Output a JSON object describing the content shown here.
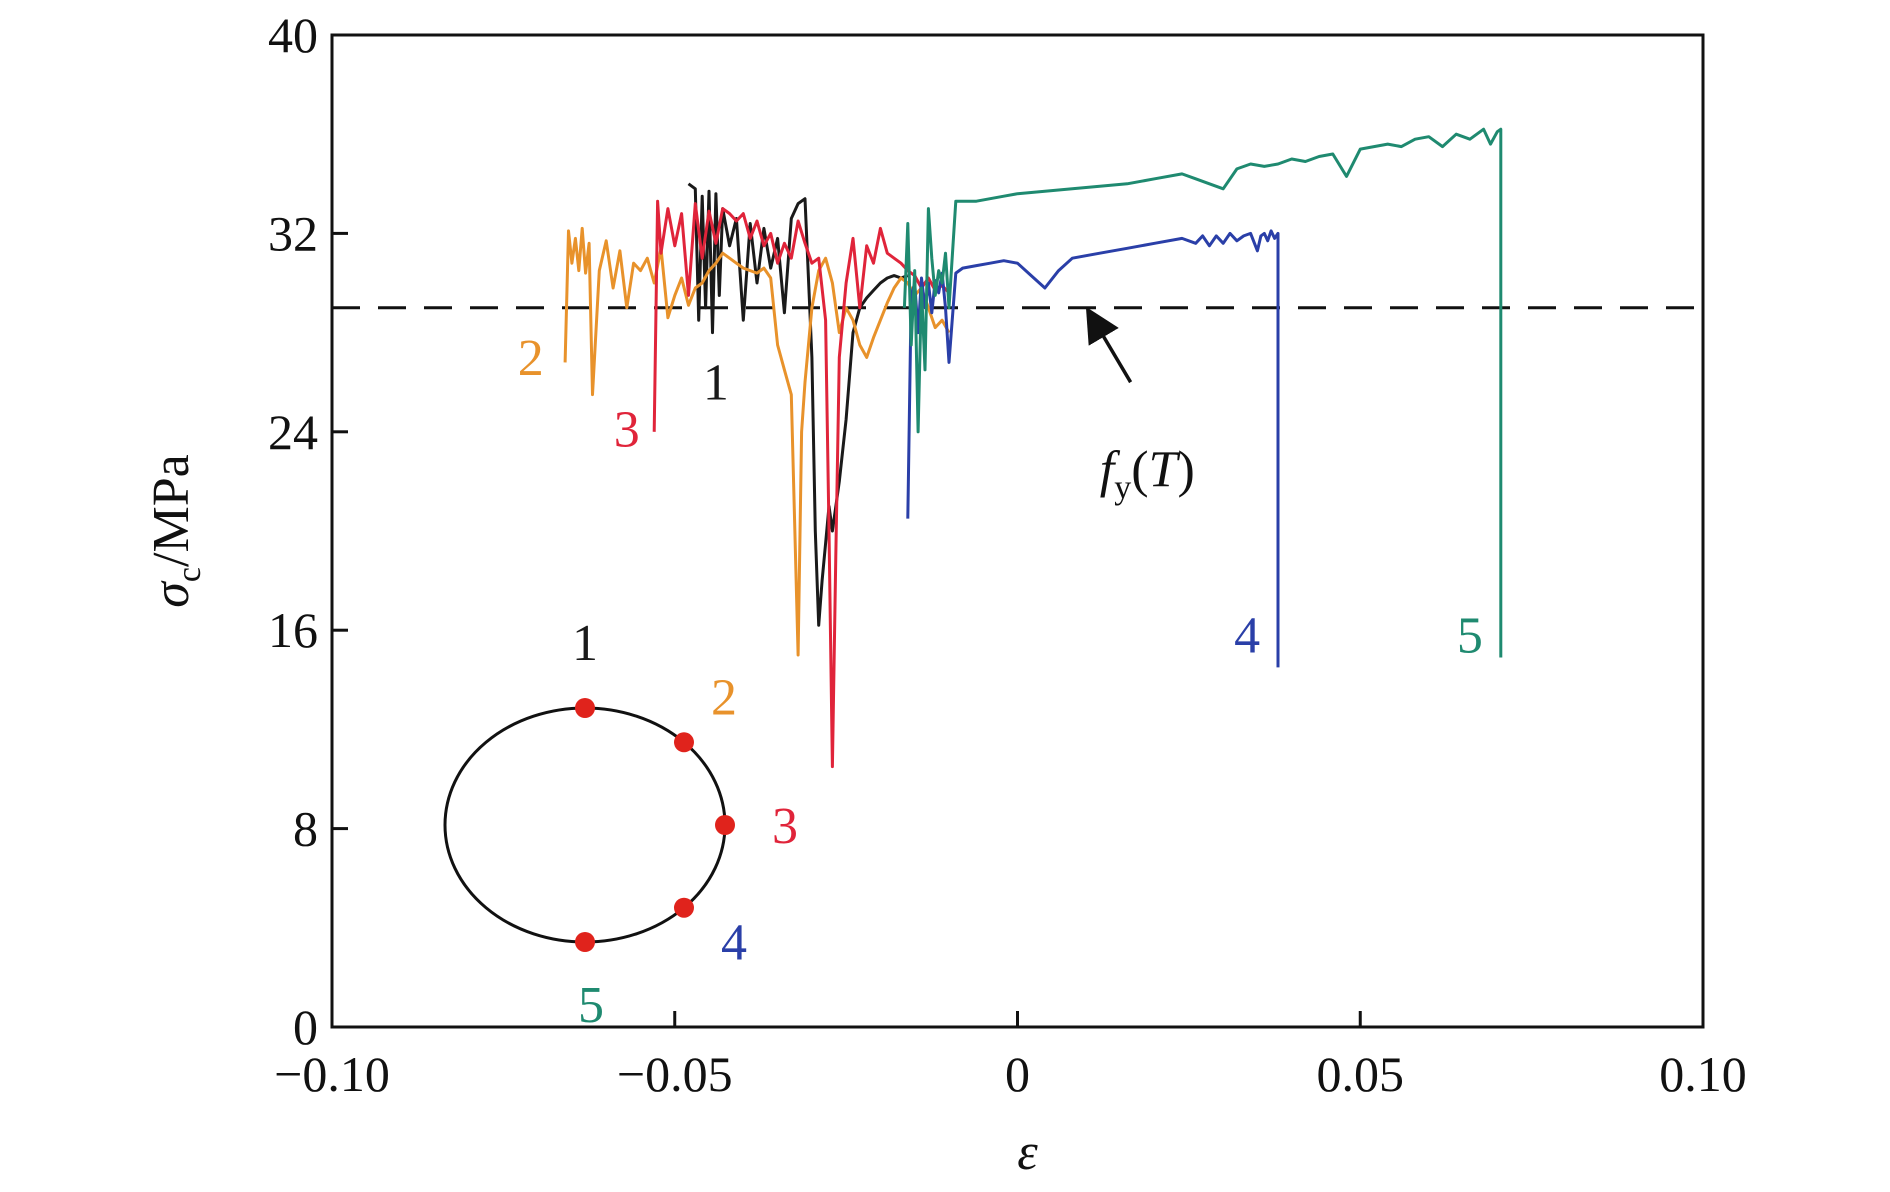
{
  "chart_data": {
    "type": "line",
    "xlabel": "ε",
    "ylabel": "σc/MPa",
    "ylabel_symbol": "σ",
    "ylabel_subscript": "c",
    "ylabel_unit": "/MPa",
    "xlim": [
      -0.1,
      0.1
    ],
    "ylim": [
      0,
      40
    ],
    "x_ticks": [
      -0.1,
      -0.05,
      0,
      0.05,
      0.1
    ],
    "x_tick_labels": [
      "−0.10",
      "−0.05",
      "0",
      "0.05",
      "0.10"
    ],
    "y_ticks": [
      0,
      8,
      16,
      24,
      32,
      40
    ],
    "y_tick_labels": [
      "0",
      "8",
      "16",
      "24",
      "32",
      "40"
    ],
    "grid": false,
    "reference_line": {
      "y": 29,
      "style": "dashed",
      "label": "fy(T)",
      "label_symbol": "f",
      "label_subscript": "y",
      "label_rest": "(T)",
      "arrow_from": [
        0.0165,
        26.0
      ],
      "arrow_to": [
        0.0105,
        28.8
      ]
    },
    "series": [
      {
        "name": "1",
        "color": "#1a1a1a",
        "label_at": [
          -0.044,
          25.3
        ],
        "x": [
          -0.048,
          -0.047,
          -0.0465,
          -0.046,
          -0.0455,
          -0.045,
          -0.0445,
          -0.044,
          -0.0435,
          -0.043,
          -0.042,
          -0.041,
          -0.04,
          -0.039,
          -0.038,
          -0.037,
          -0.036,
          -0.035,
          -0.034,
          -0.033,
          -0.032,
          -0.031,
          -0.03,
          -0.0295,
          -0.029,
          -0.0285,
          -0.028,
          -0.0275,
          -0.027,
          -0.026,
          -0.025,
          -0.024,
          -0.023,
          -0.022,
          -0.021,
          -0.02,
          -0.019,
          -0.018,
          -0.017,
          -0.016
        ],
        "y": [
          34.0,
          33.8,
          28.5,
          33.5,
          29.0,
          33.7,
          28.0,
          33.6,
          29.5,
          33.0,
          31.5,
          32.6,
          28.5,
          32.4,
          30.0,
          32.2,
          30.6,
          31.8,
          28.8,
          32.6,
          33.2,
          33.4,
          27.0,
          20.0,
          16.2,
          18.0,
          19.5,
          21.0,
          20.0,
          22.0,
          24.5,
          28.0,
          29.0,
          29.4,
          29.7,
          30.0,
          30.2,
          30.3,
          30.2,
          30.3
        ]
      },
      {
        "name": "2",
        "color": "#e8922b",
        "label_at": [
          -0.071,
          26.3
        ],
        "x": [
          -0.066,
          -0.0655,
          -0.065,
          -0.0645,
          -0.064,
          -0.0635,
          -0.063,
          -0.0625,
          -0.062,
          -0.061,
          -0.06,
          -0.059,
          -0.058,
          -0.057,
          -0.056,
          -0.055,
          -0.054,
          -0.053,
          -0.052,
          -0.051,
          -0.05,
          -0.049,
          -0.048,
          -0.047,
          -0.046,
          -0.045,
          -0.044,
          -0.043,
          -0.042,
          -0.041,
          -0.04,
          -0.039,
          -0.038,
          -0.037,
          -0.036,
          -0.035,
          -0.034,
          -0.033,
          -0.032,
          -0.0315,
          -0.031,
          -0.03,
          -0.029,
          -0.028,
          -0.027,
          -0.026,
          -0.025,
          -0.024,
          -0.023,
          -0.022,
          -0.021,
          -0.02,
          -0.019,
          -0.018,
          -0.017,
          -0.016,
          -0.015,
          -0.014,
          -0.013,
          -0.012,
          -0.011,
          -0.01
        ],
        "y": [
          26.8,
          32.1,
          30.8,
          31.8,
          30.5,
          32.2,
          30.4,
          31.6,
          25.5,
          30.5,
          31.7,
          29.8,
          31.3,
          29.0,
          30.8,
          30.5,
          31.0,
          30.0,
          31.4,
          28.6,
          29.5,
          30.2,
          29.1,
          29.8,
          30.0,
          30.5,
          30.8,
          31.2,
          31.0,
          30.8,
          30.6,
          30.5,
          30.4,
          30.6,
          30.2,
          27.5,
          26.5,
          25.5,
          15.0,
          24.0,
          26.0,
          29.0,
          30.5,
          31.0,
          30.0,
          28.0,
          29.0,
          28.5,
          27.5,
          27.0,
          27.8,
          28.5,
          29.2,
          29.8,
          30.2,
          30.0,
          29.5,
          29.8,
          29.0,
          28.2,
          28.5,
          28.0
        ]
      },
      {
        "name": "3",
        "color": "#e0243a",
        "label_at": [
          -0.057,
          23.4
        ],
        "x": [
          -0.053,
          -0.0525,
          -0.052,
          -0.051,
          -0.05,
          -0.049,
          -0.048,
          -0.047,
          -0.046,
          -0.045,
          -0.044,
          -0.043,
          -0.042,
          -0.041,
          -0.04,
          -0.039,
          -0.038,
          -0.037,
          -0.036,
          -0.035,
          -0.034,
          -0.033,
          -0.032,
          -0.031,
          -0.03,
          -0.029,
          -0.028,
          -0.0275,
          -0.027,
          -0.0265,
          -0.026,
          -0.025,
          -0.024,
          -0.023,
          -0.022,
          -0.021,
          -0.02,
          -0.019,
          -0.018,
          -0.017,
          -0.016,
          -0.015,
          -0.014,
          -0.013,
          -0.012,
          -0.011,
          -0.01
        ],
        "y": [
          24.0,
          33.3,
          31.2,
          33.0,
          31.5,
          32.8,
          29.5,
          33.2,
          31.0,
          32.9,
          31.6,
          33.0,
          32.8,
          32.5,
          32.8,
          31.8,
          32.5,
          31.5,
          32.0,
          30.8,
          31.6,
          31.0,
          32.5,
          31.6,
          30.8,
          31.0,
          28.5,
          20.0,
          10.5,
          19.0,
          27.0,
          30.0,
          31.8,
          29.0,
          31.5,
          30.8,
          32.2,
          31.2,
          31.0,
          30.8,
          30.5,
          30.3,
          29.8,
          30.2,
          29.7,
          29.9,
          29.6
        ]
      },
      {
        "name": "4",
        "color": "#2a3fa8",
        "label_at": [
          0.0335,
          15.1
        ],
        "x": [
          -0.016,
          -0.0155,
          -0.015,
          -0.0145,
          -0.014,
          -0.0135,
          -0.013,
          -0.0125,
          -0.012,
          -0.0115,
          -0.011,
          -0.0105,
          -0.01,
          -0.009,
          -0.008,
          -0.006,
          -0.004,
          -0.002,
          0.0,
          0.002,
          0.004,
          0.006,
          0.008,
          0.012,
          0.016,
          0.02,
          0.024,
          0.026,
          0.027,
          0.028,
          0.029,
          0.03,
          0.031,
          0.032,
          0.033,
          0.034,
          0.035,
          0.0355,
          0.036,
          0.0365,
          0.037,
          0.0375,
          0.038,
          0.038
        ],
        "y": [
          20.5,
          29.5,
          30.0,
          28.0,
          30.2,
          29.0,
          30.0,
          28.8,
          30.1,
          29.6,
          30.4,
          29.0,
          26.8,
          30.4,
          30.6,
          30.7,
          30.8,
          30.9,
          30.8,
          30.3,
          29.8,
          30.5,
          31.0,
          31.2,
          31.4,
          31.6,
          31.8,
          31.6,
          31.9,
          31.5,
          31.9,
          31.6,
          32.0,
          31.7,
          31.9,
          32.0,
          31.3,
          31.9,
          32.0,
          31.7,
          32.1,
          31.8,
          32.0,
          14.5
        ]
      },
      {
        "name": "5",
        "color": "#1f8a70",
        "label_at": [
          0.066,
          15.1
        ],
        "x": [
          -0.0165,
          -0.016,
          -0.0155,
          -0.015,
          -0.0145,
          -0.014,
          -0.0135,
          -0.013,
          -0.0125,
          -0.012,
          -0.0115,
          -0.011,
          -0.0105,
          -0.01,
          -0.009,
          -0.008,
          -0.006,
          -0.004,
          -0.002,
          0.0,
          0.004,
          0.008,
          0.012,
          0.016,
          0.02,
          0.024,
          0.026,
          0.028,
          0.03,
          0.032,
          0.034,
          0.036,
          0.038,
          0.04,
          0.042,
          0.044,
          0.046,
          0.048,
          0.05,
          0.052,
          0.054,
          0.056,
          0.058,
          0.06,
          0.062,
          0.064,
          0.066,
          0.068,
          0.069,
          0.07,
          0.0705,
          0.0705
        ],
        "y": [
          29.0,
          32.4,
          27.5,
          30.5,
          24.0,
          29.8,
          26.5,
          33.0,
          31.0,
          29.5,
          30.5,
          30.0,
          31.2,
          29.0,
          33.3,
          33.3,
          33.3,
          33.4,
          33.5,
          33.6,
          33.7,
          33.8,
          33.9,
          34.0,
          34.2,
          34.4,
          34.2,
          34.0,
          33.8,
          34.6,
          34.8,
          34.7,
          34.8,
          35.0,
          34.9,
          35.1,
          35.2,
          34.3,
          35.4,
          35.5,
          35.6,
          35.5,
          35.8,
          35.9,
          35.5,
          36.0,
          35.8,
          36.2,
          35.6,
          36.1,
          36.2,
          14.9
        ]
      }
    ],
    "inset": {
      "description_type": "ring",
      "points": [
        {
          "label": "1",
          "angle_deg": 90,
          "color": "#1a1a1a"
        },
        {
          "label": "2",
          "angle_deg": 45,
          "color": "#e8922b"
        },
        {
          "label": "3",
          "angle_deg": 0,
          "color": "#e0243a"
        },
        {
          "label": "4",
          "angle_deg": -45,
          "color": "#2a3fa8"
        },
        {
          "label": "5",
          "angle_deg": -90,
          "color": "#1f8a70"
        }
      ],
      "marker_color": "#e0231c"
    }
  }
}
